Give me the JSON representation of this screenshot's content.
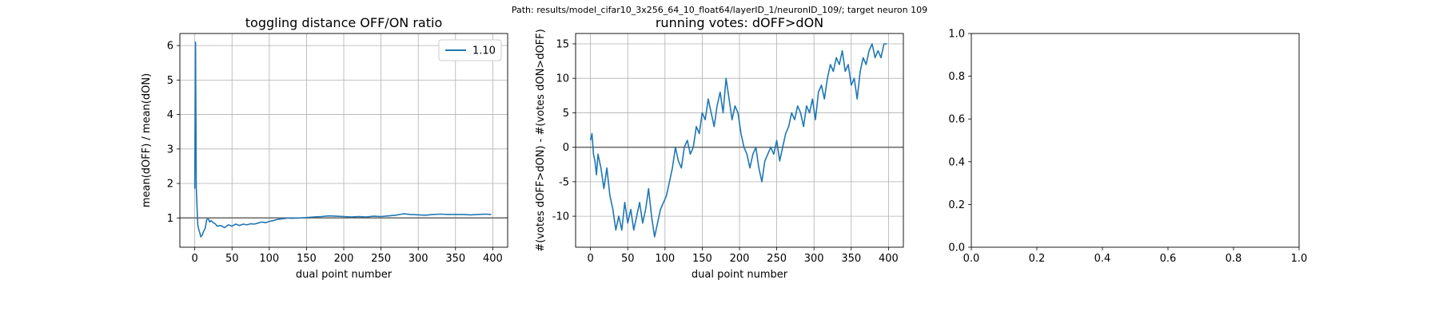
{
  "suptitle": "Path: results/model_cifar10_3x256_64_10_float64/layerID_1/neuronID_109/; target neuron 109",
  "chart_data": [
    {
      "type": "line",
      "title": "toggling distance OFF/ON ratio",
      "xlabel": "dual point number",
      "ylabel": "mean(dOFF) / mean(dON)",
      "xlim": [
        -20,
        420
      ],
      "ylim": [
        0.15,
        6.35
      ],
      "xticks": [
        0,
        50,
        100,
        150,
        200,
        250,
        300,
        350,
        400
      ],
      "yticks": [
        1,
        2,
        3,
        4,
        5,
        6
      ],
      "grid": true,
      "legend": {
        "position": "top-right",
        "entries": [
          "1.10"
        ]
      },
      "hline": 1.0,
      "line_color": "#1f77b4",
      "series": [
        {
          "name": "1.10",
          "x": [
            0,
            1,
            2,
            3,
            4,
            5,
            6,
            7,
            8,
            10,
            12,
            14,
            16,
            18,
            20,
            22,
            25,
            28,
            30,
            35,
            40,
            45,
            50,
            55,
            60,
            65,
            70,
            75,
            80,
            85,
            90,
            95,
            100,
            105,
            110,
            115,
            120,
            125,
            130,
            140,
            150,
            160,
            170,
            180,
            190,
            200,
            210,
            220,
            230,
            240,
            250,
            260,
            270,
            280,
            290,
            300,
            310,
            320,
            330,
            340,
            350,
            360,
            370,
            380,
            390,
            398
          ],
          "y": [
            1.85,
            6.1,
            1.9,
            1.35,
            0.8,
            0.7,
            0.62,
            0.55,
            0.45,
            0.5,
            0.62,
            0.7,
            0.95,
            0.98,
            0.88,
            0.92,
            0.86,
            0.82,
            0.76,
            0.78,
            0.72,
            0.8,
            0.76,
            0.82,
            0.78,
            0.82,
            0.8,
            0.83,
            0.82,
            0.85,
            0.88,
            0.86,
            0.9,
            0.92,
            0.95,
            0.97,
            0.98,
            1.0,
            0.99,
            1.0,
            1.01,
            1.03,
            1.04,
            1.06,
            1.05,
            1.04,
            1.03,
            1.04,
            1.03,
            1.05,
            1.04,
            1.06,
            1.08,
            1.12,
            1.1,
            1.09,
            1.08,
            1.1,
            1.11,
            1.1,
            1.1,
            1.1,
            1.09,
            1.1,
            1.11,
            1.1
          ]
        }
      ]
    },
    {
      "type": "line",
      "title": "running votes: dOFF>dON",
      "xlabel": "dual point number",
      "ylabel": "#(votes dOFF>dON) - #(votes dON>dOFF)",
      "xlim": [
        -20,
        420
      ],
      "ylim": [
        -14.5,
        16.5
      ],
      "xticks": [
        0,
        50,
        100,
        150,
        200,
        250,
        300,
        350,
        400
      ],
      "yticks": [
        -10,
        -5,
        0,
        5,
        10,
        15
      ],
      "grid": true,
      "hline": 0,
      "line_color": "#1f77b4",
      "series": [
        {
          "x": [
            0,
            2,
            4,
            6,
            8,
            10,
            14,
            18,
            22,
            26,
            30,
            34,
            38,
            42,
            46,
            50,
            54,
            58,
            62,
            66,
            70,
            74,
            78,
            82,
            86,
            90,
            94,
            98,
            102,
            106,
            110,
            114,
            118,
            122,
            126,
            130,
            134,
            138,
            142,
            146,
            150,
            154,
            158,
            162,
            166,
            170,
            174,
            178,
            182,
            186,
            190,
            194,
            198,
            202,
            206,
            210,
            214,
            218,
            222,
            226,
            230,
            234,
            238,
            242,
            246,
            250,
            254,
            258,
            262,
            266,
            270,
            274,
            278,
            282,
            286,
            290,
            294,
            298,
            302,
            306,
            310,
            314,
            318,
            322,
            326,
            330,
            334,
            338,
            342,
            346,
            350,
            354,
            358,
            362,
            366,
            370,
            374,
            378,
            382,
            386,
            390,
            394,
            398
          ],
          "y": [
            1,
            2,
            -1,
            -2,
            -4,
            -1,
            -3,
            -6,
            -3,
            -7,
            -9,
            -12,
            -10,
            -12,
            -8,
            -11,
            -9,
            -12,
            -10,
            -8,
            -11,
            -9,
            -6,
            -10,
            -13,
            -11,
            -9,
            -8,
            -7,
            -5,
            -3,
            0,
            -2,
            -3,
            0,
            1,
            -1,
            0,
            3,
            2,
            5,
            4,
            7,
            5,
            3,
            6,
            8,
            5,
            10,
            7,
            4,
            6,
            5,
            2,
            0,
            -1,
            -3,
            -1,
            0,
            -3,
            -5,
            -2,
            -1,
            0,
            -1,
            1,
            -2,
            0,
            2,
            3,
            5,
            4,
            6,
            5,
            3,
            6,
            5,
            7,
            4,
            8,
            9,
            7,
            10,
            12,
            11,
            13,
            12,
            14,
            11,
            12,
            9,
            10,
            7,
            11,
            13,
            12,
            14,
            15,
            13,
            14,
            13,
            15,
            15
          ]
        }
      ]
    },
    {
      "type": "line",
      "title": "",
      "xlim": [
        0,
        1
      ],
      "ylim": [
        0,
        1
      ],
      "xticks": [
        "0.0",
        "0.2",
        "0.4",
        "0.6",
        "0.8",
        "1.0"
      ],
      "yticks": [
        "0.0",
        "0.2",
        "0.4",
        "0.6",
        "0.8",
        "1.0"
      ],
      "grid": false,
      "series": []
    }
  ]
}
